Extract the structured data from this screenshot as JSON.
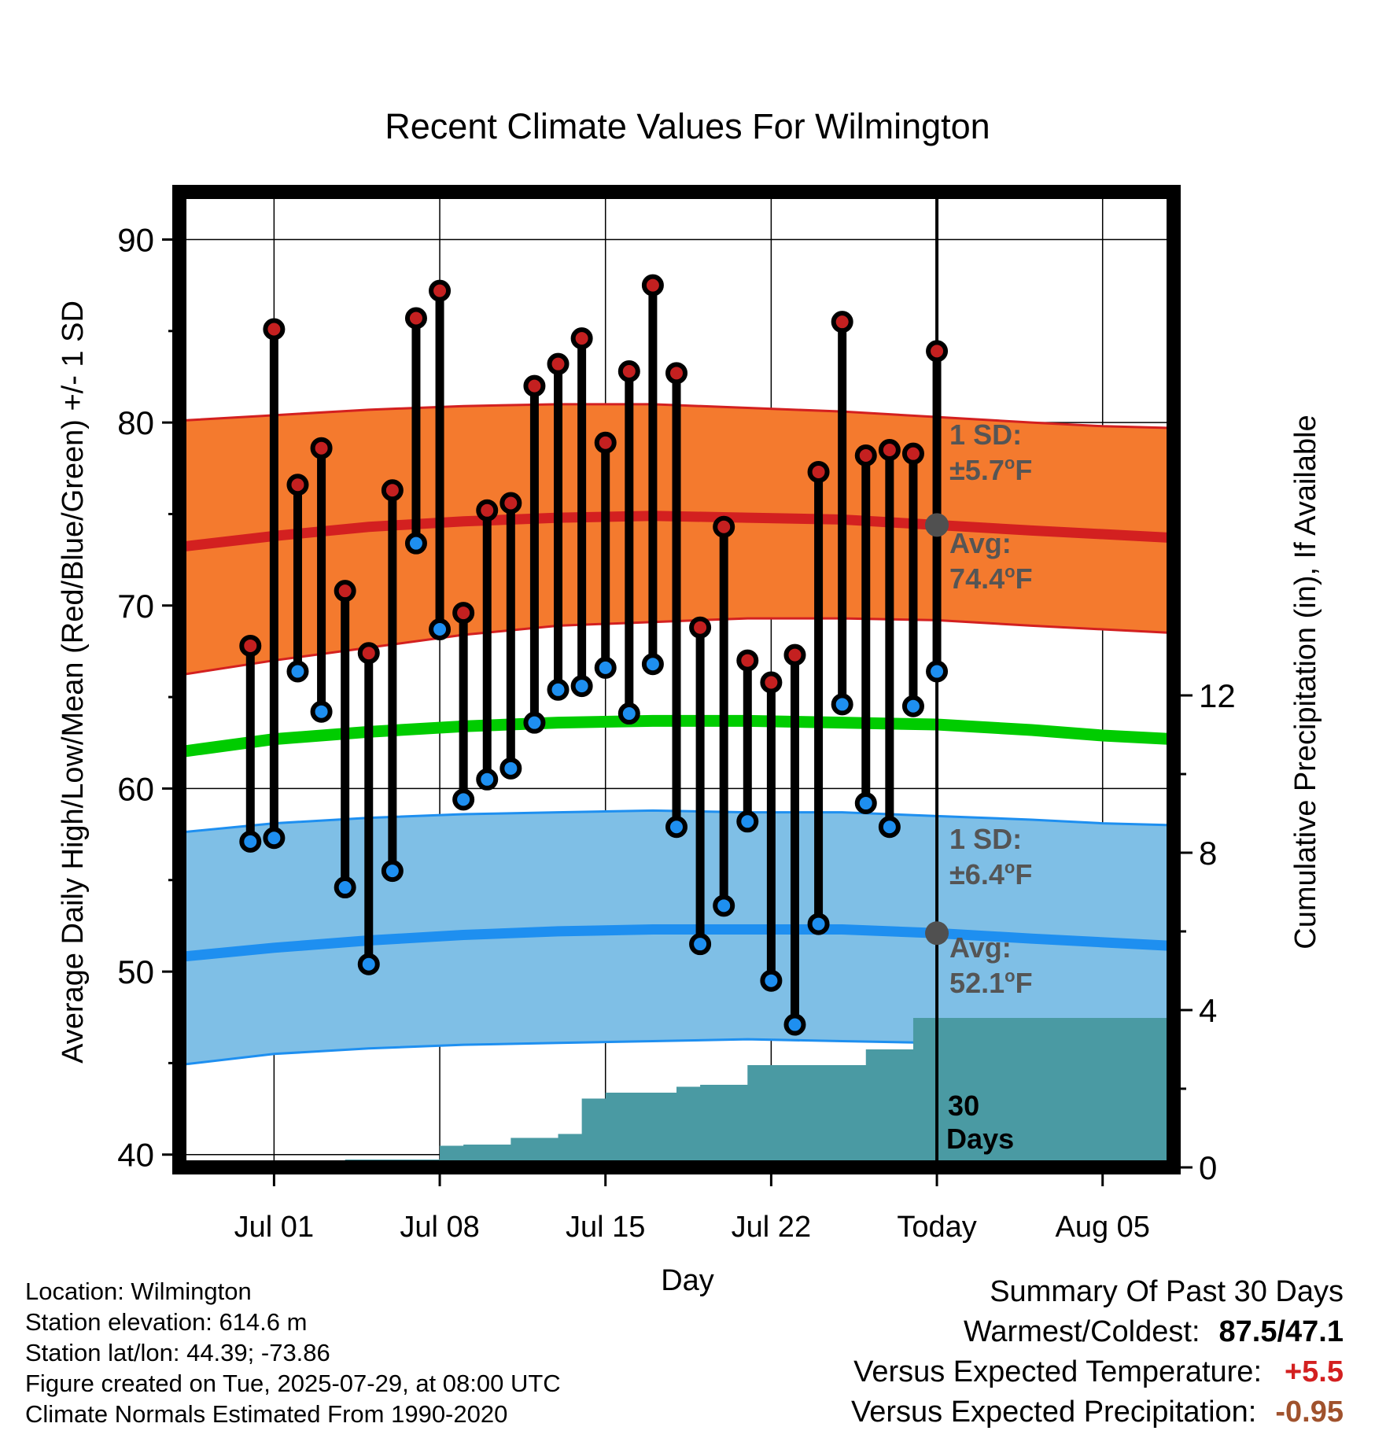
{
  "chart_data": {
    "type": "line",
    "title": "Recent Climate Values For Wilmington",
    "xlabel": "Day",
    "ylabel": "Average Daily High/Low/Mean (Red/Blue/Green) +/- 1 SD",
    "y2label": "Cumulative Precipitation (in), If Available",
    "ylim": [
      39.3,
      92.6
    ],
    "y_ticks": [
      40,
      50,
      60,
      70,
      80,
      90
    ],
    "y2lim": [
      0,
      24.8
    ],
    "y2_ticks": [
      0,
      4,
      8,
      12
    ],
    "xlim": [
      "2025-06-27",
      "2025-08-08"
    ],
    "x_ticks": [
      {
        "date": "2025-07-01",
        "label": "Jul 01"
      },
      {
        "date": "2025-07-08",
        "label": "Jul 08"
      },
      {
        "date": "2025-07-15",
        "label": "Jul 15"
      },
      {
        "date": "2025-07-22",
        "label": "Jul 22"
      },
      {
        "date": "2025-07-29",
        "label": "Today"
      },
      {
        "date": "2025-08-05",
        "label": "Aug 05"
      }
    ],
    "today": "2025-07-29",
    "window_label": "30 Days",
    "grid": true,
    "colors": {
      "high_band": "#f47a2e",
      "high_line": "#d32020",
      "low_band": "#7fbfe6",
      "low_line": "#1e8ff0",
      "mean_line": "#00cc00",
      "precip": "#4a9aa3",
      "high_marker": "#c42020",
      "low_marker": "#1e8ff0",
      "avg_marker": "#505050",
      "annotation": "#555555"
    },
    "normals": {
      "dates": [
        "2025-06-27",
        "2025-07-01",
        "2025-07-05",
        "2025-07-09",
        "2025-07-13",
        "2025-07-17",
        "2025-07-21",
        "2025-07-25",
        "2025-07-29",
        "2025-08-02",
        "2025-08-05",
        "2025-08-08"
      ],
      "high_avg": [
        73.2,
        73.8,
        74.3,
        74.6,
        74.8,
        74.9,
        74.8,
        74.7,
        74.4,
        74.1,
        73.9,
        73.7
      ],
      "high_upper": [
        80.1,
        80.4,
        80.7,
        80.9,
        81.0,
        81.0,
        80.8,
        80.6,
        80.3,
        80.0,
        79.8,
        79.7
      ],
      "high_lower": [
        66.2,
        67.0,
        67.7,
        68.4,
        68.9,
        69.1,
        69.3,
        69.3,
        69.2,
        68.9,
        68.7,
        68.5
      ],
      "low_avg": [
        50.8,
        51.3,
        51.7,
        52.0,
        52.2,
        52.3,
        52.3,
        52.3,
        52.1,
        51.8,
        51.6,
        51.4
      ],
      "low_upper": [
        57.6,
        58.1,
        58.4,
        58.6,
        58.7,
        58.8,
        58.7,
        58.7,
        58.5,
        58.3,
        58.1,
        58.0
      ],
      "low_lower": [
        44.9,
        45.5,
        45.8,
        46.0,
        46.1,
        46.2,
        46.3,
        46.2,
        46.1,
        46.1,
        46.0,
        46.0
      ],
      "mean_avg": [
        62.0,
        62.7,
        63.1,
        63.4,
        63.6,
        63.7,
        63.7,
        63.6,
        63.5,
        63.2,
        62.9,
        62.7
      ]
    },
    "series": [
      {
        "name": "High",
        "dates": [
          "2025-06-30",
          "2025-07-01",
          "2025-07-02",
          "2025-07-03",
          "2025-07-04",
          "2025-07-05",
          "2025-07-06",
          "2025-07-07",
          "2025-07-08",
          "2025-07-09",
          "2025-07-10",
          "2025-07-11",
          "2025-07-12",
          "2025-07-13",
          "2025-07-14",
          "2025-07-15",
          "2025-07-16",
          "2025-07-17",
          "2025-07-18",
          "2025-07-19",
          "2025-07-20",
          "2025-07-21",
          "2025-07-22",
          "2025-07-23",
          "2025-07-24",
          "2025-07-25",
          "2025-07-26",
          "2025-07-27",
          "2025-07-28",
          "2025-07-29"
        ],
        "values": [
          67.8,
          85.1,
          76.6,
          78.6,
          70.8,
          67.4,
          76.3,
          85.7,
          87.2,
          69.6,
          75.2,
          75.6,
          82.0,
          83.2,
          84.6,
          78.9,
          82.8,
          87.5,
          82.7,
          68.8,
          74.3,
          67.0,
          65.8,
          67.3,
          77.3,
          85.5,
          78.2,
          78.5,
          78.3,
          83.9
        ]
      },
      {
        "name": "Low",
        "dates": [
          "2025-06-30",
          "2025-07-01",
          "2025-07-02",
          "2025-07-03",
          "2025-07-04",
          "2025-07-05",
          "2025-07-06",
          "2025-07-07",
          "2025-07-08",
          "2025-07-09",
          "2025-07-10",
          "2025-07-11",
          "2025-07-12",
          "2025-07-13",
          "2025-07-14",
          "2025-07-15",
          "2025-07-16",
          "2025-07-17",
          "2025-07-18",
          "2025-07-19",
          "2025-07-20",
          "2025-07-21",
          "2025-07-22",
          "2025-07-23",
          "2025-07-24",
          "2025-07-25",
          "2025-07-26",
          "2025-07-27",
          "2025-07-28",
          "2025-07-29"
        ],
        "values": [
          57.1,
          57.3,
          66.4,
          64.2,
          54.6,
          50.4,
          55.5,
          73.4,
          68.7,
          59.4,
          60.5,
          61.1,
          63.6,
          65.4,
          65.6,
          66.6,
          64.1,
          66.8,
          57.9,
          51.5,
          53.6,
          58.2,
          49.5,
          47.1,
          52.6,
          64.6,
          59.2,
          57.9,
          64.5,
          66.4
        ]
      },
      {
        "name": "Precipitation",
        "dates": [
          "2025-06-27",
          "2025-07-01",
          "2025-07-03",
          "2025-07-04",
          "2025-07-05",
          "2025-07-06",
          "2025-07-07",
          "2025-07-08",
          "2025-07-09",
          "2025-07-10",
          "2025-07-11",
          "2025-07-12",
          "2025-07-13",
          "2025-07-14",
          "2025-07-15",
          "2025-07-16",
          "2025-07-17",
          "2025-07-18",
          "2025-07-19",
          "2025-07-20",
          "2025-07-21",
          "2025-07-22",
          "2025-07-23",
          "2025-07-24",
          "2025-07-25",
          "2025-07-26",
          "2025-07-27",
          "2025-07-28",
          "2025-07-29",
          "2025-08-08"
        ],
        "values": [
          0.0,
          0.0,
          0.0,
          0.2,
          0.2,
          0.2,
          0.2,
          0.55,
          0.58,
          0.58,
          0.75,
          0.75,
          0.85,
          1.75,
          1.9,
          1.9,
          1.9,
          2.05,
          2.1,
          2.1,
          2.6,
          2.6,
          2.6,
          2.6,
          2.6,
          3.0,
          3.0,
          3.8,
          3.8,
          3.8
        ]
      }
    ],
    "annotations": {
      "high_sd_label": "1 SD:",
      "high_sd_value": "±5.7°F",
      "high_avg_label": "Avg:",
      "high_avg_value": "74.4°F",
      "low_sd_label": "1 SD:",
      "low_sd_value": "±6.4°F",
      "low_avg_label": "Avg:",
      "low_avg_value": "52.1°F"
    }
  },
  "info": {
    "location": "Location: Wilmington",
    "elevation": "Station elevation: 614.6 m",
    "latlon": "Station lat/lon: 44.39; -73.86",
    "created": "Figure created on Tue, 2025-07-29, at 08:00 UTC",
    "normals": "Climate Normals Estimated From 1990-2020"
  },
  "summary": {
    "title": "Summary Of Past 30 Days",
    "warmest_coldest_label": "Warmest/Coldest:",
    "warmest_coldest_value": "87.5/47.1",
    "temp_label": "Versus Expected Temperature:",
    "temp_value": "+5.5",
    "temp_color": "#d32020",
    "precip_label": "Versus Expected Precipitation:",
    "precip_value": "-0.95",
    "precip_color": "#a0522d"
  }
}
